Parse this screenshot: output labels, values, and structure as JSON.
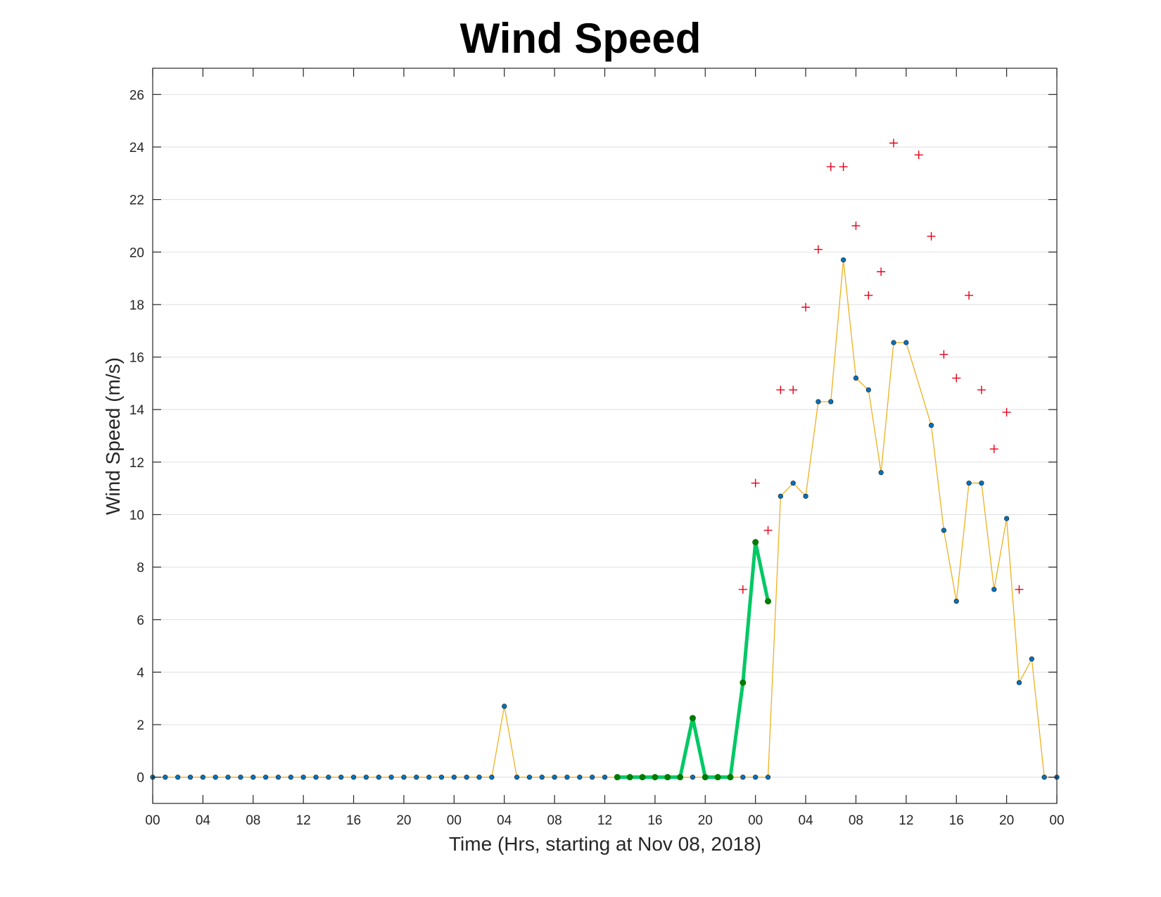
{
  "chart_data": {
    "type": "line",
    "title": "Wind Speed",
    "xlabel": "Time (Hrs, starting at Nov 08, 2018)",
    "ylabel": "Wind Speed (m/s)",
    "xlim": [
      0,
      72
    ],
    "ylim": [
      -1,
      27
    ],
    "grid": "horizontal",
    "x_ticks": [
      {
        "x": 0,
        "label": "00"
      },
      {
        "x": 4,
        "label": "04"
      },
      {
        "x": 8,
        "label": "08"
      },
      {
        "x": 12,
        "label": "12"
      },
      {
        "x": 16,
        "label": "16"
      },
      {
        "x": 20,
        "label": "20"
      },
      {
        "x": 24,
        "label": "00"
      },
      {
        "x": 28,
        "label": "04"
      },
      {
        "x": 32,
        "label": "08"
      },
      {
        "x": 36,
        "label": "12"
      },
      {
        "x": 40,
        "label": "16"
      },
      {
        "x": 44,
        "label": "20"
      },
      {
        "x": 48,
        "label": "00"
      },
      {
        "x": 52,
        "label": "04"
      },
      {
        "x": 56,
        "label": "08"
      },
      {
        "x": 60,
        "label": "12"
      },
      {
        "x": 64,
        "label": "16"
      },
      {
        "x": 68,
        "label": "20"
      },
      {
        "x": 72,
        "label": "00"
      }
    ],
    "y_ticks": [
      0,
      2,
      4,
      6,
      8,
      10,
      12,
      14,
      16,
      18,
      20,
      22,
      24,
      26
    ],
    "series": [
      {
        "style": "line-markers",
        "line_color": "#EDB120",
        "marker_color": "#0072BD",
        "x": [
          0,
          1,
          2,
          3,
          4,
          5,
          6,
          7,
          8,
          9,
          10,
          11,
          12,
          13,
          14,
          15,
          16,
          17,
          18,
          19,
          20,
          21,
          22,
          23,
          24,
          25,
          26,
          27,
          28,
          29,
          30,
          31,
          32,
          33,
          34,
          35,
          36,
          37,
          38,
          39,
          40,
          41,
          42,
          43,
          44,
          45,
          46,
          47,
          48,
          49,
          50,
          51,
          52,
          53,
          54,
          55,
          56,
          57,
          58,
          59,
          60,
          62,
          63,
          64,
          65,
          66,
          67,
          68,
          69,
          70,
          71,
          72
        ],
        "y": [
          0,
          0,
          0,
          0,
          0,
          0,
          0,
          0,
          0,
          0,
          0,
          0,
          0,
          0,
          0,
          0,
          0,
          0,
          0,
          0,
          0,
          0,
          0,
          0,
          0,
          0,
          0,
          0,
          2.7,
          0,
          0,
          0,
          0,
          0,
          0,
          0,
          0,
          0,
          0,
          0,
          0,
          0,
          0,
          0,
          0,
          0,
          0,
          0,
          0,
          0,
          10.7,
          11.2,
          10.7,
          14.3,
          14.3,
          19.7,
          15.2,
          14.75,
          11.6,
          16.55,
          16.55,
          13.4,
          9.4,
          6.7,
          11.2,
          11.2,
          7.15,
          9.85,
          3.6,
          4.5,
          0,
          0
        ]
      },
      {
        "style": "thick-line",
        "line_color": "#00C864",
        "marker_color": "#007A00",
        "x": [
          37,
          38,
          39,
          40,
          41,
          42,
          43,
          44,
          45,
          46,
          47,
          48,
          49
        ],
        "y": [
          0,
          0,
          0,
          0,
          0,
          0,
          2.25,
          0,
          0,
          0,
          3.6,
          8.95,
          6.7
        ]
      },
      {
        "style": "plus",
        "marker_color": "#E8001A",
        "x": [
          47,
          48,
          49,
          50,
          51,
          52,
          53,
          54,
          55,
          56,
          57,
          58,
          59,
          61,
          62,
          63,
          64,
          65,
          66,
          67,
          68,
          69
        ],
        "y": [
          7.15,
          11.2,
          9.4,
          14.75,
          14.75,
          17.9,
          20.1,
          23.25,
          23.25,
          21.0,
          18.35,
          19.25,
          24.15,
          23.7,
          20.6,
          16.1,
          15.2,
          18.35,
          14.75,
          12.5,
          13.9,
          7.15
        ]
      }
    ]
  }
}
